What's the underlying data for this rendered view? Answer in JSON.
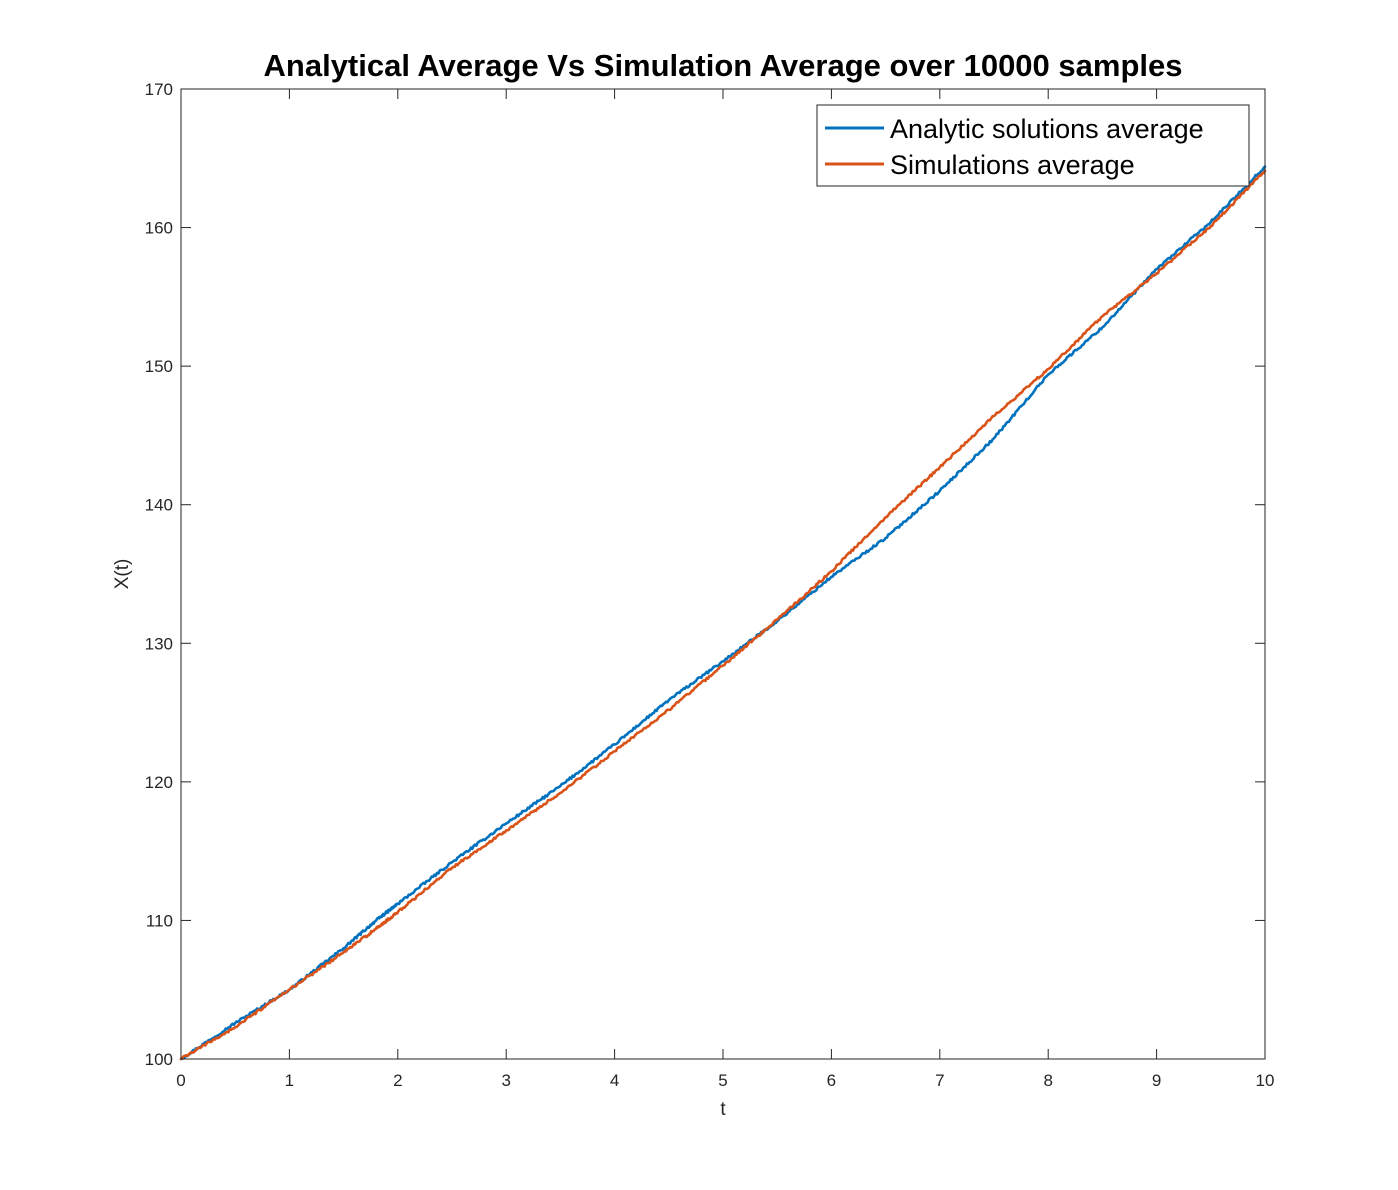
{
  "chart_data": {
    "type": "line",
    "title": "Analytical Average Vs Simulation Average over 10000 samples",
    "xlabel": "t",
    "ylabel": "X(t)",
    "xlim": [
      0,
      10
    ],
    "ylim": [
      100,
      170
    ],
    "xticks": [
      "0",
      "1",
      "2",
      "3",
      "4",
      "5",
      "6",
      "7",
      "8",
      "9",
      "10"
    ],
    "yticks": [
      "100",
      "110",
      "120",
      "130",
      "140",
      "150",
      "160",
      "170"
    ],
    "grid": false,
    "legend_position": "top-right",
    "series": [
      {
        "name": "Analytic solutions average",
        "color": "#0072BD",
        "x": [
          0,
          0.5,
          1,
          1.5,
          1.8,
          2,
          2.5,
          3,
          3.5,
          4,
          4.5,
          5,
          5.5,
          6,
          6.5,
          7,
          7.5,
          8,
          8.5,
          9,
          9.5,
          10
        ],
        "y": [
          100,
          102.6,
          105.0,
          108.0,
          110.0,
          111.2,
          114.2,
          117.0,
          119.7,
          122.7,
          125.9,
          128.7,
          131.6,
          134.8,
          137.6,
          141.0,
          144.8,
          149.4,
          152.8,
          157.0,
          160.4,
          164.4
        ]
      },
      {
        "name": "Simulations average",
        "color": "#D95319",
        "x": [
          0,
          0.5,
          1,
          1.5,
          1.8,
          2,
          2.5,
          3,
          3.5,
          4,
          4.5,
          5,
          5.5,
          6,
          6.5,
          7,
          7.5,
          8,
          8.5,
          9,
          9.5,
          10
        ],
        "y": [
          100,
          102.3,
          105.0,
          107.7,
          109.4,
          110.6,
          113.8,
          116.5,
          119.2,
          122.2,
          125.2,
          128.4,
          131.7,
          135.2,
          139.1,
          142.7,
          146.4,
          149.8,
          153.6,
          156.7,
          160.1,
          164.1
        ]
      }
    ]
  }
}
